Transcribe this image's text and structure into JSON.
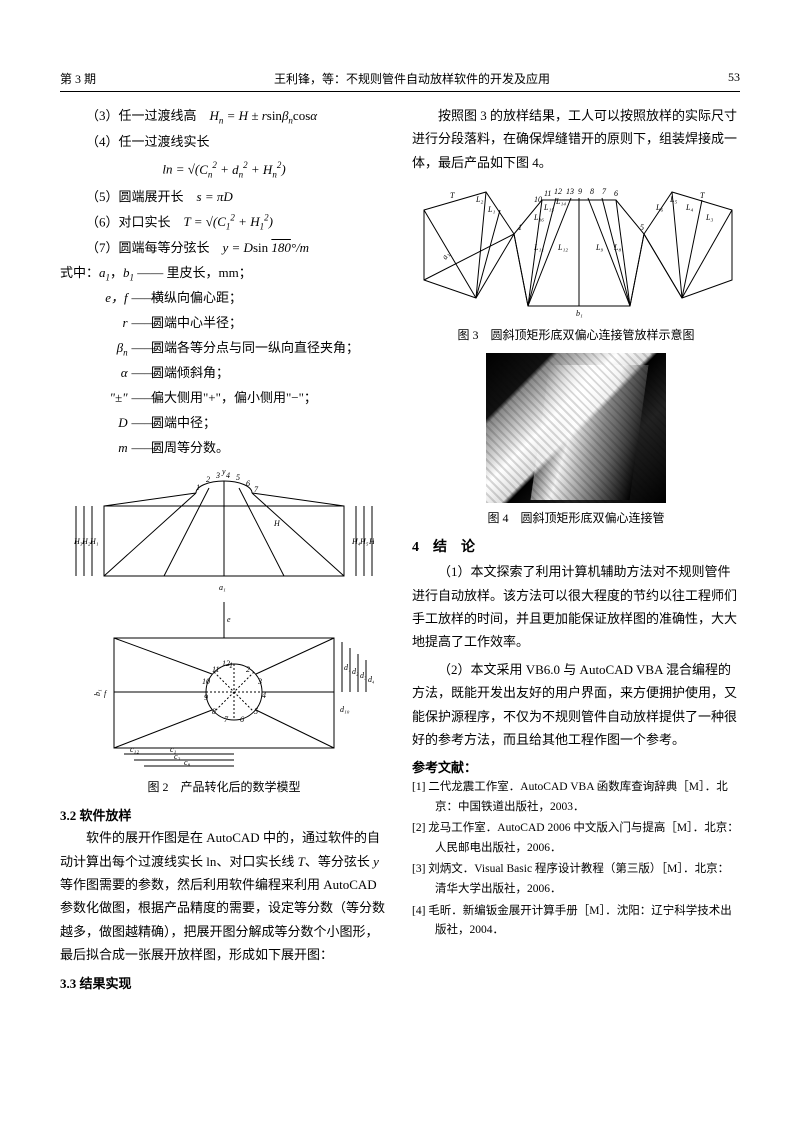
{
  "header": {
    "issue": "第 3 期",
    "running_title": "王利锋，等：不规则管件自动放样软件的开发及应用",
    "page": "53"
  },
  "left": {
    "items": [
      "（3）任一过渡线高　<span class='math'>H<span class='sub'>n</span> = H ± r</span>sin<span class='math'>β<span class='sub'>n</span></span>cos<span class='math'>α</span>",
      "（4）任一过渡线实长"
    ],
    "formula1": "ln = √(<span class='math'>C<span class='sub'>n</span></span><span class='sup'>2</span> + <span class='math'>d<span class='sub'>n</span></span><span class='sup'>2</span> + <span class='math'>H<span class='sub'>n</span></span><span class='sup'>2</span>)",
    "items2": [
      "（5）圆端展开长　<span class='math'>s = πD</span>",
      "（6）对口实长　<span class='math'>T = √(C<span class='sub'>1</span><span class='sup'>2</span> + H<span class='sub'>1</span><span class='sup'>2</span>)</span>",
      "（7）圆端每等分弦长　<span class='math'>y = D</span>sin <span class='math'><span style='text-decoration:overline'>180</span>°/m</span>"
    ],
    "defs_intro": "式中：<span class='math'>a<span class='sub'>1</span></span>，<span class='math'>b<span class='sub'>1</span></span> —— 里皮长，mm；",
    "defs": [
      {
        "sym": "e，f",
        "desc": "横纵向偏心距；"
      },
      {
        "sym": "r",
        "desc": "圆端中心半径；"
      },
      {
        "sym": "β<span class='sub'>n</span>",
        "desc": "圆端各等分点与同一纵向直径夹角；"
      },
      {
        "sym": "α",
        "desc": "圆端倾斜角；"
      },
      {
        "sym": "\"±\"",
        "desc": "偏大侧用\"+\"，偏小侧用\"−\"；"
      },
      {
        "sym": "D",
        "desc": "圆端中径；"
      },
      {
        "sym": "m",
        "desc": "圆周等分数。"
      }
    ],
    "fig2_caption": "图 2　产品转化后的数学模型",
    "sec32_title": "3.2 软件放样",
    "sec32_body": "软件的展开作图是在 AutoCAD 中的，通过软件的自动计算出每个过渡线实长 ln、对口实长线 <span class='math'>T</span>、等分弦长 <span class='math'>y</span> 等作图需要的参数，然后利用软件编程来利用 AutoCAD 参数化做图，根据产品精度的需要，设定等分数（等分数越多，做图越精确），把展开图分解成等分数个小图形，最后拟合成一张展开放样图，形成如下展开图：",
    "sec33_title": "3.3 结果实现"
  },
  "right": {
    "intro": "按照图 3 的放样结果，工人可以按照放样的实际尺寸进行分段落料，在确保焊缝错开的原则下，组装焊接成一体，最后产品如下图 4。",
    "fig3_caption": "图 3　圆斜顶矩形底双偏心连接管放样示意图",
    "fig4_caption": "图 4　圆斜顶矩形底双偏心连接管",
    "sec4_title": "4　结　论",
    "concl1": "（1）本文探索了利用计算机辅助方法对不规则管件进行自动放样。该方法可以很大程度的节约以往工程师们手工放样的时间，并且更加能保证放样图的准确性，大大地提高了工作效率。",
    "concl2": "（2）本文采用 VB6.0 与 AutoCAD VBA 混合编程的方法，既能开发出友好的用户界面，来方便拥护使用，又能保护源程序，不仅为不规则管件自动放样提供了一种很好的参考方法，而且给其他工程作图一个参考。",
    "refs_title": "参考文献：",
    "refs": [
      "[1] 二代龙震工作室．AutoCAD VBA 函数库查询辞典［M］．北京：中国铁道出版社，2003．",
      "[2] 龙马工作室．AutoCAD 2006 中文版入门与提高［M］．北京：人民邮电出版社，2006．",
      "[3] 刘炳文．Visual Basic 程序设计教程（第三版）［M］．北京：清华大学出版社，2006．",
      "[4] 毛昕．新编钣金展开计算手册［M］．沈阳：辽宁科学技术出版社，2004．"
    ]
  },
  "fig2a": {
    "labels": [
      "H₃",
      "H₂",
      "H₁",
      "H₄",
      "H₅",
      "H₆",
      "H₇",
      "H",
      "a₁",
      "y",
      "1",
      "2",
      "3",
      "4",
      "5",
      "6",
      "7"
    ],
    "stroke": "#000000",
    "bg": "#ffffff"
  },
  "fig2b": {
    "labels": [
      "e",
      "f",
      "b₁",
      "d₁",
      "d₂",
      "d₃",
      "d₄",
      "d₅",
      "d₆",
      "d₇",
      "d₁₀",
      "c₁",
      "c₂",
      "c₈",
      "c₁₂",
      "c₁₅",
      "1",
      "2",
      "3",
      "4",
      "5",
      "6",
      "7",
      "8",
      "9",
      "10",
      "11",
      "12"
    ],
    "stroke": "#000000"
  },
  "fig3": {
    "labels": [
      "T",
      "T",
      "L₁",
      "L₂",
      "L₃",
      "L₄",
      "L₅",
      "L₆",
      "L₇",
      "L₈",
      "L₉",
      "L₁₀",
      "L₁₁",
      "L₁₂",
      "L₁₃",
      "L₁₄",
      "L₁₅",
      "L₁₆",
      "a₁",
      "b₁",
      "1",
      "2",
      "3",
      "4",
      "5",
      "6",
      "7",
      "8",
      "9",
      "10",
      "11",
      "12",
      "13"
    ],
    "stroke": "#000000"
  }
}
